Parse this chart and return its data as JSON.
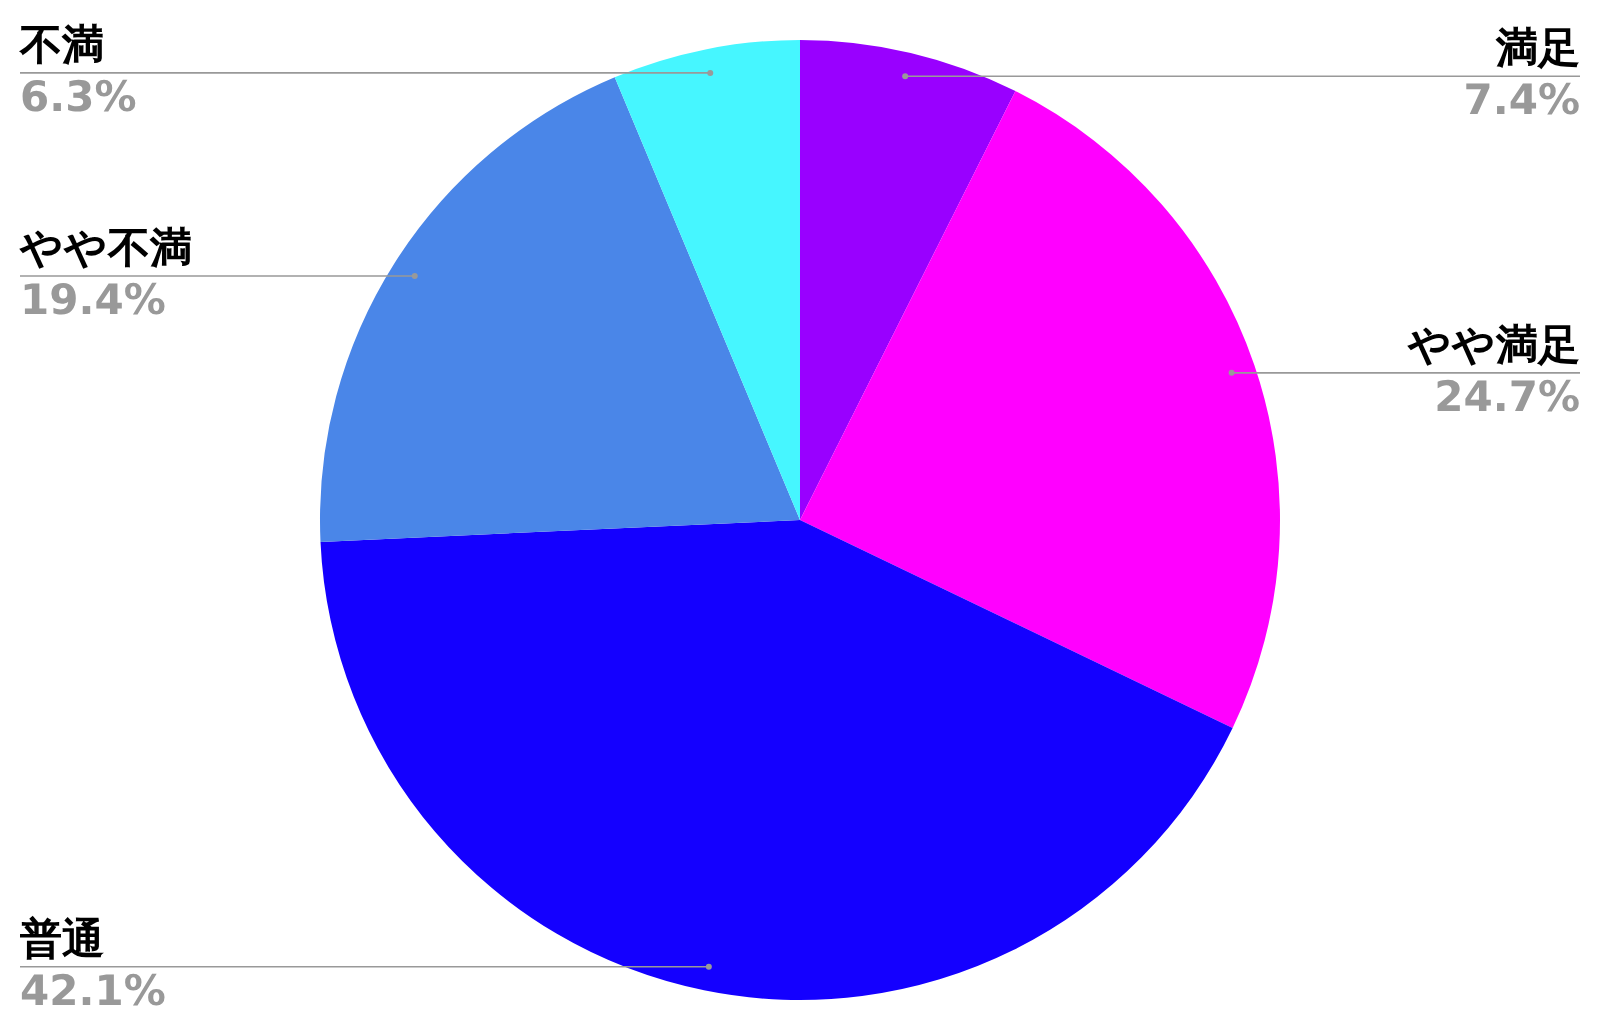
{
  "chart_data": {
    "type": "pie",
    "categories": [
      "満足",
      "やや満足",
      "普通",
      "やや不満",
      "不満"
    ],
    "values": [
      7.4,
      24.7,
      42.1,
      19.4,
      6.3
    ],
    "colors": [
      "#9900ff",
      "#ff00ff",
      "#1400ff",
      "#4a86e8",
      "#46f6ff"
    ],
    "value_labels": [
      "7.4%",
      "24.7%",
      "42.1%",
      "19.4%",
      "6.3%"
    ]
  }
}
